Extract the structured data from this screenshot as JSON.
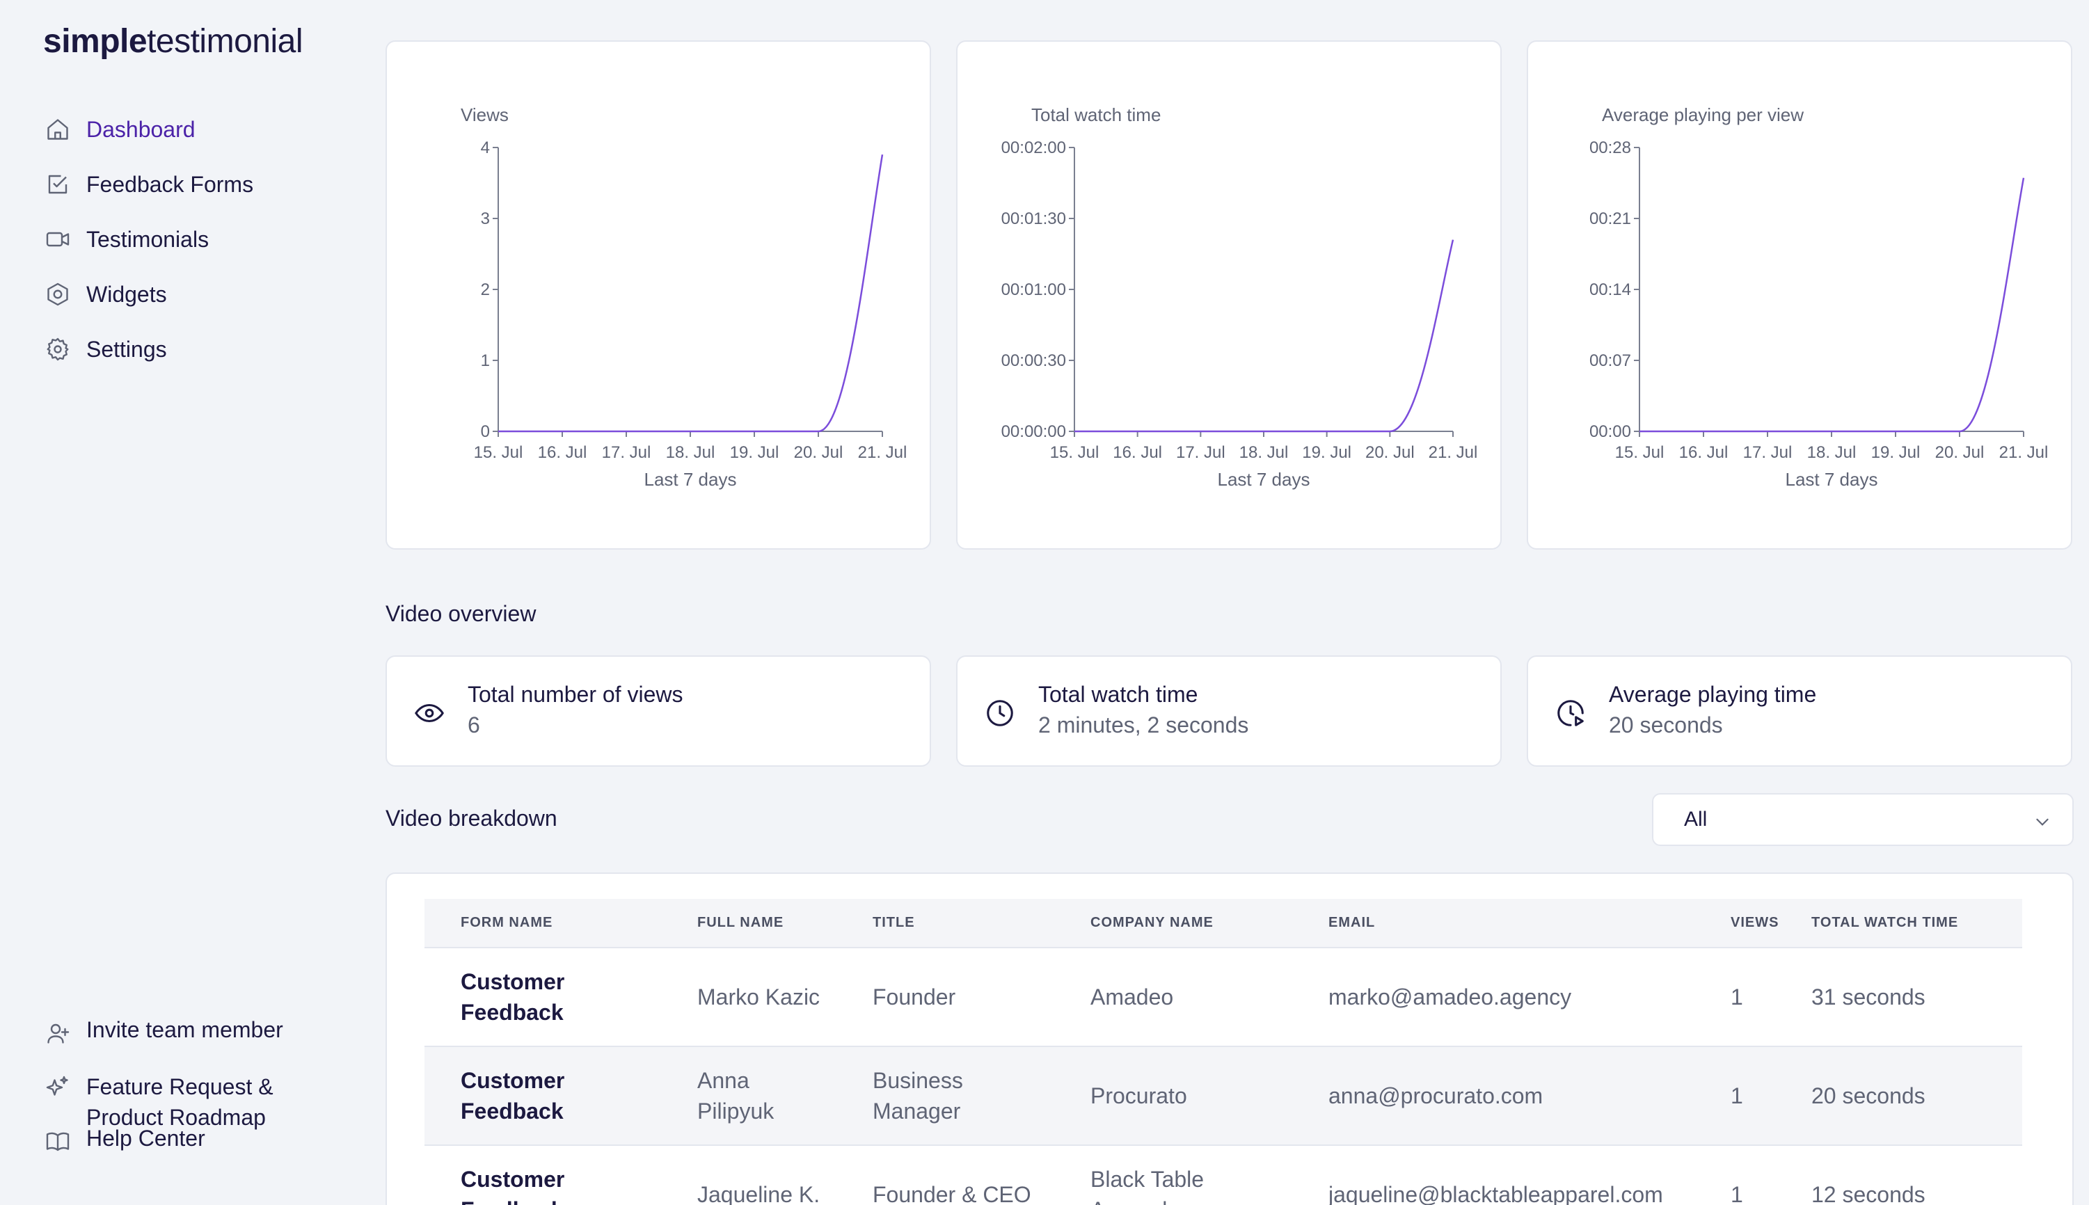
{
  "logo": {
    "bold": "simple",
    "light": "testimonial"
  },
  "sidebar": {
    "items": [
      {
        "label": "Dashboard",
        "icon": "home-icon",
        "active": true
      },
      {
        "label": "Feedback Forms",
        "icon": "checkbox-icon"
      },
      {
        "label": "Testimonials",
        "icon": "video-icon"
      },
      {
        "label": "Widgets",
        "icon": "hexagon-icon"
      },
      {
        "label": "Settings",
        "icon": "gear-icon"
      }
    ],
    "bottom": [
      {
        "label": "Invite team member",
        "icon": "user-plus-icon"
      },
      {
        "label": "Feature Request &",
        "label2": "Product Roadmap",
        "icon": "sparkles-icon"
      },
      {
        "label": "Help Center",
        "icon": "book-icon"
      }
    ]
  },
  "chart_data": [
    {
      "type": "line",
      "ylabel": "Views",
      "xlabel": "Last 7 days",
      "categories": [
        "15. Jul",
        "16. Jul",
        "17. Jul",
        "18. Jul",
        "19. Jul",
        "20. Jul",
        "21. Jul"
      ],
      "y_ticks": [
        "0",
        "1",
        "2",
        "3",
        "4"
      ],
      "ylim": [
        0,
        4
      ],
      "series": [
        {
          "values": [
            0,
            0,
            0,
            0,
            0,
            0,
            3.9
          ]
        }
      ],
      "color": "#7b4ddb"
    },
    {
      "type": "line",
      "ylabel": "Total watch time",
      "xlabel": "Last 7 days",
      "categories": [
        "15. Jul",
        "16. Jul",
        "17. Jul",
        "18. Jul",
        "19. Jul",
        "20. Jul",
        "21. Jul"
      ],
      "y_ticks": [
        "00:00:00",
        "00:00:30",
        "00:01:00",
        "00:01:30",
        "00:02:00"
      ],
      "ylim": [
        0,
        120
      ],
      "series": [
        {
          "values": [
            0,
            0,
            0,
            0,
            0,
            0,
            81
          ]
        }
      ],
      "color": "#7b4ddb"
    },
    {
      "type": "line",
      "ylabel": "Average playing per view",
      "xlabel": "Last 7 days",
      "categories": [
        "15. Jul",
        "16. Jul",
        "17. Jul",
        "18. Jul",
        "19. Jul",
        "20. Jul",
        "21. Jul"
      ],
      "y_ticks": [
        "00:00",
        "00:07",
        "00:14",
        "00:21",
        "00:28"
      ],
      "ylim": [
        0,
        28
      ],
      "series": [
        {
          "values": [
            0,
            0,
            0,
            0,
            0,
            0,
            25
          ]
        }
      ],
      "color": "#7b4ddb"
    }
  ],
  "overview": {
    "title": "Video overview",
    "stats": [
      {
        "label": "Total number of views",
        "value": "6",
        "icon": "eye-icon"
      },
      {
        "label": "Total watch time",
        "value": "2 minutes, 2 seconds",
        "icon": "clock-icon"
      },
      {
        "label": "Average playing time",
        "value": "20 seconds",
        "icon": "clock-play-icon"
      }
    ]
  },
  "breakdown": {
    "title": "Video breakdown",
    "filter": "All",
    "columns": [
      "FORM NAME",
      "FULL NAME",
      "TITLE",
      "COMPANY NAME",
      "EMAIL",
      "VIEWS",
      "TOTAL WATCH TIME"
    ],
    "rows": [
      {
        "form1": "Customer",
        "form2": "Feedback",
        "name1": "Marko Kazic",
        "name2": "",
        "title1": "Founder",
        "title2": "",
        "company1": "Amadeo",
        "company2": "",
        "email": "marko@amadeo.agency",
        "views": "1",
        "time": "31 seconds"
      },
      {
        "form1": "Customer",
        "form2": "Feedback",
        "name1": "Anna",
        "name2": "Pilipyuk",
        "title1": "Business",
        "title2": "Manager",
        "company1": "Procurato",
        "company2": "",
        "email": "anna@procurato.com",
        "views": "1",
        "time": "20 seconds"
      },
      {
        "form1": "Customer",
        "form2": "Feedback",
        "name1": "Jaqueline K.",
        "name2": "",
        "title1": "Founder & CEO",
        "title2": "",
        "company1": "Black Table",
        "company2": "Apparel",
        "email": "jaqueline@blacktableapparel.com",
        "views": "1",
        "time": "12 seconds"
      }
    ]
  }
}
